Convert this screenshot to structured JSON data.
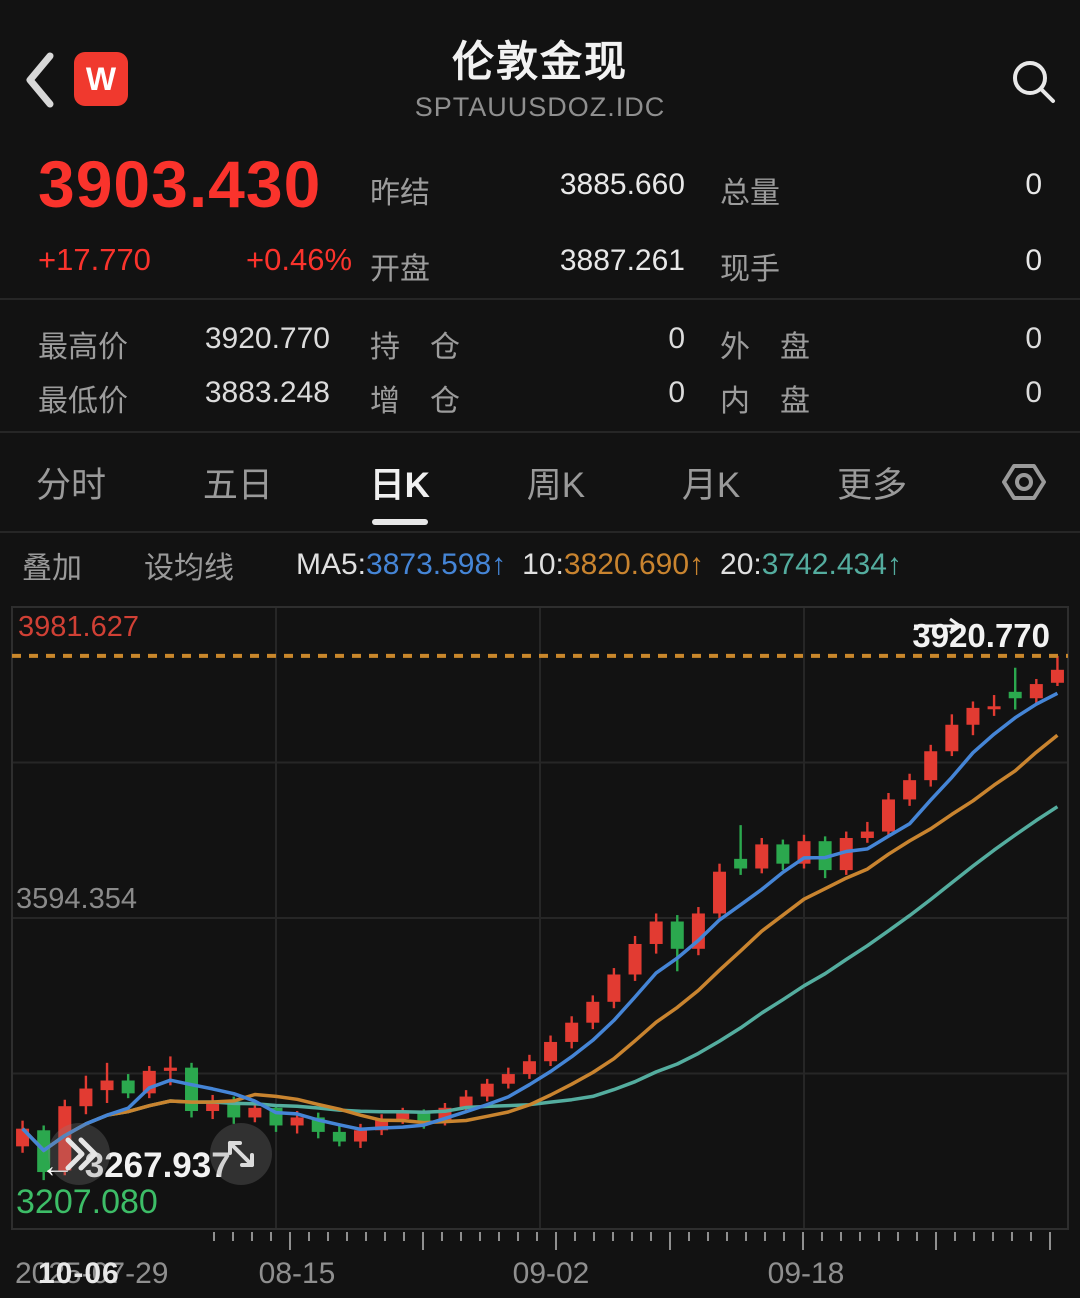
{
  "header": {
    "title": "伦敦金现",
    "subtitle": "SPTAUUSDOZ.IDC",
    "logo_text": "W"
  },
  "quote": {
    "last": "3903.430",
    "change": "+17.770",
    "change_pct": "+0.46%",
    "mid_rows": [
      {
        "label": "昨结",
        "value": "3885.660"
      },
      {
        "label": "开盘",
        "value": "3887.261"
      }
    ],
    "right_rows": [
      {
        "label": "总量",
        "value": "0"
      },
      {
        "label": "现手",
        "value": "0"
      }
    ],
    "stats": [
      {
        "label": "最高价",
        "value": "3920.770"
      },
      {
        "label": "持　仓",
        "value": "0"
      },
      {
        "label": "外　盘",
        "value": "0"
      },
      {
        "label": "最低价",
        "value": "3883.248"
      },
      {
        "label": "增　仓",
        "value": "0"
      },
      {
        "label": "内　盘",
        "value": "0"
      }
    ]
  },
  "tabs": {
    "items": [
      "分时",
      "五日",
      "日K",
      "周K",
      "月K",
      "更多"
    ],
    "active": "日K"
  },
  "ma_bar": {
    "overlay": "叠加",
    "set_ma": "设均线",
    "ma5_label": "MA5:",
    "ma5": "3873.598↑",
    "ma10_label": "10:",
    "ma10": "3820.690↑",
    "ma20_label": "20:",
    "ma20": "3742.434↑"
  },
  "chart_data": {
    "type": "candlestick",
    "title": "伦敦金现 日K",
    "y_axis": {
      "top": 3981.627,
      "middle": 3594.354,
      "bottom": 3207.08,
      "labels": [
        "3981.627",
        "3594.354",
        "3207.080"
      ]
    },
    "annotations": {
      "high_line": {
        "value": 3920.77,
        "label": "3920.770"
      },
      "low_point": {
        "value": 3267.937,
        "label": "← 3267.937"
      }
    },
    "ma": {
      "ma5": 3873.598,
      "ma10": 3820.69,
      "ma20": 3742.434
    },
    "ma_colors": {
      "ma5": "#4585d6",
      "ma10": "#c9842f",
      "ma20": "#54ad9f"
    },
    "colors": {
      "up": "#e23b32",
      "down": "#2ba84e",
      "high_line": "#c9872b"
    },
    "x_axis": {
      "labels": [
        "2025-07-29",
        "08-15",
        "09-02",
        "09-18",
        "10-06"
      ]
    },
    "candles": [
      [
        "07-29",
        3310,
        3342,
        3302,
        3332
      ],
      [
        "07-30",
        3330,
        3336,
        3267.94,
        3278
      ],
      [
        "07-31",
        3280,
        3368,
        3274,
        3360
      ],
      [
        "08-01",
        3360,
        3398,
        3350,
        3382
      ],
      [
        "08-04",
        3380,
        3414,
        3364,
        3392
      ],
      [
        "08-05",
        3392,
        3400,
        3370,
        3376
      ],
      [
        "08-06",
        3376,
        3410,
        3370,
        3404
      ],
      [
        "08-07",
        3404,
        3422,
        3386,
        3408
      ],
      [
        "08-08",
        3408,
        3414,
        3346,
        3354
      ],
      [
        "08-11",
        3354,
        3374,
        3344,
        3366
      ],
      [
        "08-12",
        3366,
        3372,
        3338,
        3346
      ],
      [
        "08-13",
        3346,
        3366,
        3340,
        3358
      ],
      [
        "08-14",
        3358,
        3362,
        3328,
        3336
      ],
      [
        "08-15",
        3336,
        3354,
        3326,
        3346
      ],
      [
        "08-18",
        3346,
        3352,
        3320,
        3328
      ],
      [
        "08-19",
        3328,
        3336,
        3310,
        3316
      ],
      [
        "08-20",
        3316,
        3338,
        3308,
        3330
      ],
      [
        "08-21",
        3330,
        3350,
        3324,
        3344
      ],
      [
        "08-22",
        3344,
        3358,
        3338,
        3352
      ],
      [
        "08-25",
        3352,
        3356,
        3332,
        3340
      ],
      [
        "08-26",
        3340,
        3364,
        3336,
        3358
      ],
      [
        "08-27",
        3358,
        3380,
        3352,
        3372
      ],
      [
        "08-28",
        3372,
        3394,
        3366,
        3388
      ],
      [
        "08-29",
        3388,
        3408,
        3382,
        3400
      ],
      [
        "09-01",
        3400,
        3424,
        3394,
        3416
      ],
      [
        "09-02",
        3416,
        3448,
        3410,
        3440
      ],
      [
        "09-03",
        3440,
        3472,
        3432,
        3464
      ],
      [
        "09-04",
        3464,
        3498,
        3456,
        3490
      ],
      [
        "09-05",
        3490,
        3532,
        3482,
        3524
      ],
      [
        "09-08",
        3524,
        3572,
        3516,
        3562
      ],
      [
        "09-09",
        3562,
        3600,
        3550,
        3590
      ],
      [
        "09-10",
        3590,
        3598,
        3528,
        3556
      ],
      [
        "09-11",
        3556,
        3608,
        3548,
        3600
      ],
      [
        "09-12",
        3600,
        3662,
        3594,
        3652
      ],
      [
        "09-15",
        3668,
        3710,
        3648,
        3656
      ],
      [
        "09-16",
        3656,
        3694,
        3650,
        3686
      ],
      [
        "09-17",
        3686,
        3692,
        3654,
        3662
      ],
      [
        "09-18",
        3662,
        3698,
        3656,
        3690
      ],
      [
        "09-19",
        3690,
        3696,
        3644,
        3654
      ],
      [
        "09-22",
        3654,
        3702,
        3648,
        3694
      ],
      [
        "09-23",
        3694,
        3714,
        3688,
        3702
      ],
      [
        "09-24",
        3702,
        3750,
        3696,
        3742
      ],
      [
        "09-25",
        3742,
        3774,
        3734,
        3766
      ],
      [
        "09-26",
        3766,
        3810,
        3758,
        3802
      ],
      [
        "09-29",
        3802,
        3848,
        3796,
        3835
      ],
      [
        "09-30",
        3835,
        3864,
        3822,
        3856
      ],
      [
        "10-01",
        3856,
        3872,
        3846,
        3858
      ],
      [
        "10-02",
        3876,
        3906,
        3854,
        3868
      ],
      [
        "10-03",
        3868,
        3892,
        3862,
        3885.66
      ],
      [
        "10-06",
        3887.26,
        3920.77,
        3883.25,
        3903.43
      ]
    ]
  }
}
